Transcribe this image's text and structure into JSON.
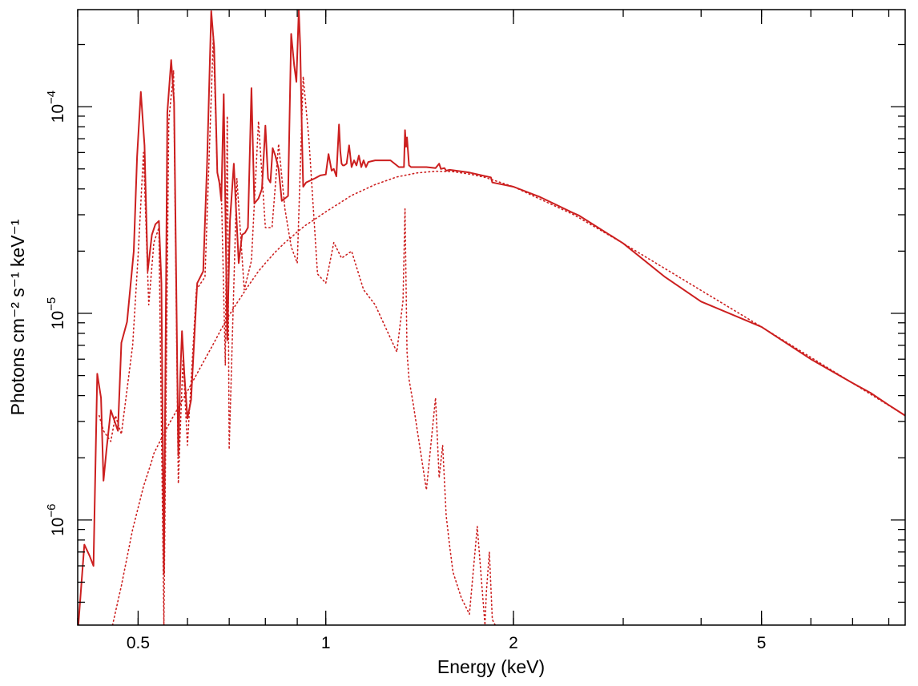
{
  "chart_data": {
    "type": "line",
    "title": "",
    "xlabel": "Energy (keV)",
    "ylabel": "Photons cm⁻² s⁻¹ keV⁻¹",
    "xscale": "log",
    "yscale": "log",
    "xlim": [
      0.4,
      8.5
    ],
    "ylim": [
      3.1e-07,
      0.000295
    ],
    "grid": false,
    "x_ticks": [
      {
        "value": 0.5,
        "label": "0.5"
      },
      {
        "value": 1,
        "label": "1"
      },
      {
        "value": 2,
        "label": "2"
      },
      {
        "value": 5,
        "label": "5"
      }
    ],
    "y_ticks": [
      {
        "value": 1e-06,
        "base": "10",
        "exp": "−6"
      },
      {
        "value": 1e-05,
        "base": "10",
        "exp": "−5"
      },
      {
        "value": 0.0001,
        "base": "10",
        "exp": "−4"
      }
    ],
    "colors": {
      "series": "#cc1f1f"
    },
    "series": [
      {
        "style": "solid",
        "x": [
          0.401,
          0.41,
          0.418,
          0.424,
          0.43,
          0.436,
          0.44,
          0.445,
          0.452,
          0.456,
          0.464,
          0.47,
          0.48,
          0.492,
          0.498,
          0.505,
          0.512,
          0.518,
          0.526,
          0.533,
          0.54,
          0.545,
          0.55,
          0.557,
          0.565,
          0.571,
          0.58,
          0.584,
          0.588,
          0.593,
          0.6,
          0.608,
          0.622,
          0.636,
          0.645,
          0.655,
          0.662,
          0.67,
          0.675,
          0.68,
          0.686,
          0.695,
          0.702,
          0.712,
          0.725,
          0.734,
          0.742,
          0.75,
          0.76,
          0.768,
          0.78,
          0.79,
          0.8,
          0.808,
          0.815,
          0.822,
          0.83,
          0.84,
          0.85,
          0.87,
          0.88,
          0.89,
          0.897,
          0.905,
          0.91,
          0.916,
          0.92,
          0.93,
          0.945,
          0.96,
          0.98,
          1.0,
          1.01,
          1.022,
          1.03,
          1.04,
          1.05,
          1.055,
          1.06,
          1.065,
          1.07,
          1.08,
          1.09,
          1.1,
          1.11,
          1.12,
          1.13,
          1.14,
          1.15,
          1.16,
          1.17,
          1.2,
          1.23,
          1.27,
          1.31,
          1.335,
          1.34,
          1.345,
          1.35,
          1.36,
          1.37,
          1.45,
          1.5,
          1.52,
          1.53,
          1.55,
          1.56,
          1.58,
          1.7,
          1.84,
          1.85,
          2.0,
          2.2,
          2.5,
          2.55,
          3.0,
          3.5,
          4.0,
          5.0,
          6.0,
          7.0,
          7.5,
          8.0,
          8.5
        ],
        "y": [
          3.1e-07,
          7.6e-07,
          6.7e-07,
          6e-07,
          5.1e-06,
          3.9e-06,
          1.55e-06,
          2.2e-06,
          3.4e-06,
          3.15e-06,
          2.7e-06,
          7.2e-06,
          9.1e-06,
          2e-05,
          5.7e-05,
          0.000118,
          6.5e-05,
          1.6e-05,
          2.4e-05,
          2.7e-05,
          2.8e-05,
          1.4e-05,
          5.5e-07,
          9.4e-05,
          0.000168,
          0.000105,
          2.05e-06,
          4.8e-06,
          8.2e-06,
          5.1e-06,
          3.1e-06,
          3.8e-06,
          1.4e-05,
          1.6e-05,
          5.3e-05,
          0.00029,
          0.000195,
          4.8e-05,
          4.3e-05,
          3.5e-05,
          0.000115,
          7.4e-06,
          2.8e-05,
          5.3e-05,
          1.75e-05,
          2.4e-05,
          2.45e-05,
          2.6e-05,
          0.000123,
          3.4e-05,
          3.6e-05,
          4e-05,
          8.1e-05,
          4.5e-05,
          4.3e-05,
          6.3e-05,
          5.8e-05,
          5e-05,
          3.5e-05,
          3.7e-05,
          0.000225,
          0.000158,
          0.000132,
          0.000295,
          0.000195,
          7.1e-05,
          4.1e-05,
          4.3e-05,
          4.4e-05,
          4.5e-05,
          4.65e-05,
          4.7e-05,
          5.9e-05,
          4.9e-05,
          5e-05,
          4.6e-05,
          8.2e-05,
          6.1e-05,
          5.3e-05,
          5.2e-05,
          5.2e-05,
          5.3e-05,
          6.5e-05,
          5.1e-05,
          5.5e-05,
          5.2e-05,
          5.8e-05,
          5.1e-05,
          5.5e-05,
          5.1e-05,
          5.4e-05,
          5.5e-05,
          5.5e-05,
          5.5e-05,
          5.1e-05,
          5.1e-05,
          7.7e-05,
          6.4e-05,
          7.1e-05,
          5.2e-05,
          5.1e-05,
          5.1e-05,
          5.05e-05,
          5.3e-05,
          5e-05,
          5.05e-05,
          4.9e-05,
          4.95e-05,
          4.8e-05,
          4.55e-05,
          4.3e-05,
          4.1e-05,
          3.67e-05,
          3.05e-05,
          2.97e-05,
          2.18e-05,
          1.5e-05,
          1.14e-05,
          8.6e-06,
          6e-06,
          4.6e-06,
          4.1e-06,
          3.6e-06,
          3.2e-06
        ]
      },
      {
        "style": "dotted",
        "x": [
          0.455,
          0.47,
          0.49,
          0.51,
          0.525,
          0.53,
          0.54,
          0.56,
          0.58,
          0.6,
          0.63,
          0.66,
          0.68,
          0.7,
          0.72,
          0.75,
          0.78,
          0.8,
          0.83,
          0.86,
          0.88,
          0.9,
          0.93,
          0.96,
          1.0,
          1.1,
          1.2,
          1.3,
          1.4,
          1.5,
          1.6,
          1.7,
          1.8,
          2.0,
          2.5,
          3.0,
          5.0,
          8.5
        ],
        "y": [
          3.1e-07,
          4.8e-07,
          9e-07,
          1.45e-06,
          1.9e-06,
          2.1e-06,
          2.35e-06,
          2.9e-06,
          3.5e-06,
          4.2e-06,
          5.5e-06,
          7.1e-06,
          8.4e-06,
          9.8e-06,
          1.12e-05,
          1.35e-05,
          1.6e-05,
          1.75e-05,
          1.98e-05,
          2.2e-05,
          2.33e-05,
          2.48e-05,
          2.68e-05,
          2.85e-05,
          3.1e-05,
          3.72e-05,
          4.2e-05,
          4.57e-05,
          4.78e-05,
          4.87e-05,
          4.85e-05,
          4.72e-05,
          4.55e-05,
          4.1e-05,
          3e-05,
          2.18e-05,
          8.6e-06,
          3.2e-06
        ]
      },
      {
        "style": "dotted",
        "x": [
          0.433,
          0.44,
          0.452,
          0.46,
          0.47,
          0.49,
          0.5,
          0.51,
          0.52,
          0.53,
          0.54,
          0.55,
          0.56,
          0.57,
          0.58,
          0.59,
          0.6,
          0.62,
          0.64,
          0.66,
          0.67,
          0.68,
          0.69,
          0.695,
          0.7,
          0.72,
          0.74,
          0.76,
          0.78,
          0.8,
          0.82,
          0.84,
          0.86,
          0.88,
          0.9,
          0.92,
          0.94,
          0.97,
          1.0,
          1.03,
          1.06,
          1.1,
          1.15,
          1.2,
          1.3,
          1.33,
          1.34,
          1.35,
          1.36,
          1.38,
          1.45,
          1.5,
          1.52,
          1.54,
          1.56,
          1.58,
          1.6,
          1.65,
          1.7,
          1.75,
          1.8,
          1.81,
          1.83,
          1.85,
          1.87
        ],
        "y": [
          3.2e-06,
          2.7e-06,
          2.4e-06,
          3.2e-06,
          2.6e-06,
          7e-06,
          1.9e-05,
          6e-05,
          1.1e-05,
          2.2e-05,
          2.6e-05,
          3.1e-07,
          8.5e-05,
          0.00015,
          1.5e-06,
          6e-06,
          2.3e-06,
          1.3e-05,
          1.5e-05,
          0.00022,
          4.8e-05,
          4e-05,
          5.6e-06,
          9e-05,
          2.2e-06,
          4.5e-05,
          1.3e-05,
          1.8e-05,
          8.5e-05,
          2.6e-05,
          2.6e-05,
          6.6e-05,
          3.2e-05,
          2.1e-05,
          1.75e-05,
          0.00014,
          6.8e-05,
          1.55e-05,
          1.4e-05,
          2.2e-05,
          1.85e-05,
          2e-05,
          1.3e-05,
          1.1e-05,
          6.5e-06,
          1.15e-05,
          3.2e-05,
          6.5e-06,
          4.8e-06,
          3.7e-06,
          1.4e-06,
          3.9e-06,
          1.6e-06,
          2.3e-06,
          1.05e-06,
          7.5e-07,
          5.6e-07,
          4.2e-07,
          3.5e-07,
          9.3e-07,
          3.1e-07,
          4.5e-07,
          7e-07,
          3.3e-07,
          3.1e-07
        ]
      }
    ]
  }
}
